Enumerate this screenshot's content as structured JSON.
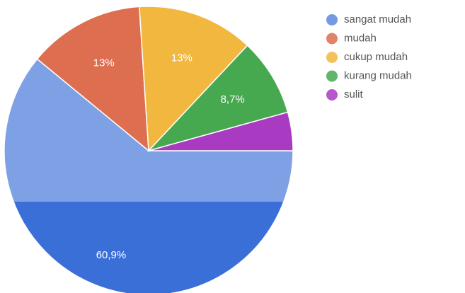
{
  "chart_data": {
    "type": "pie",
    "categories": [
      "sangat mudah",
      "mudah",
      "cukup mudah",
      "kurang mudah",
      "sulit"
    ],
    "values": [
      60.9,
      13,
      13,
      8.7,
      4.3
    ],
    "value_labels": [
      "60,9%",
      "13%",
      "13%",
      "8,7%",
      null
    ],
    "colors": [
      "#3a6fd8",
      "#dd6e4f",
      "#f2b73f",
      "#47a94f",
      "#a83bc1"
    ],
    "legend": "right"
  }
}
